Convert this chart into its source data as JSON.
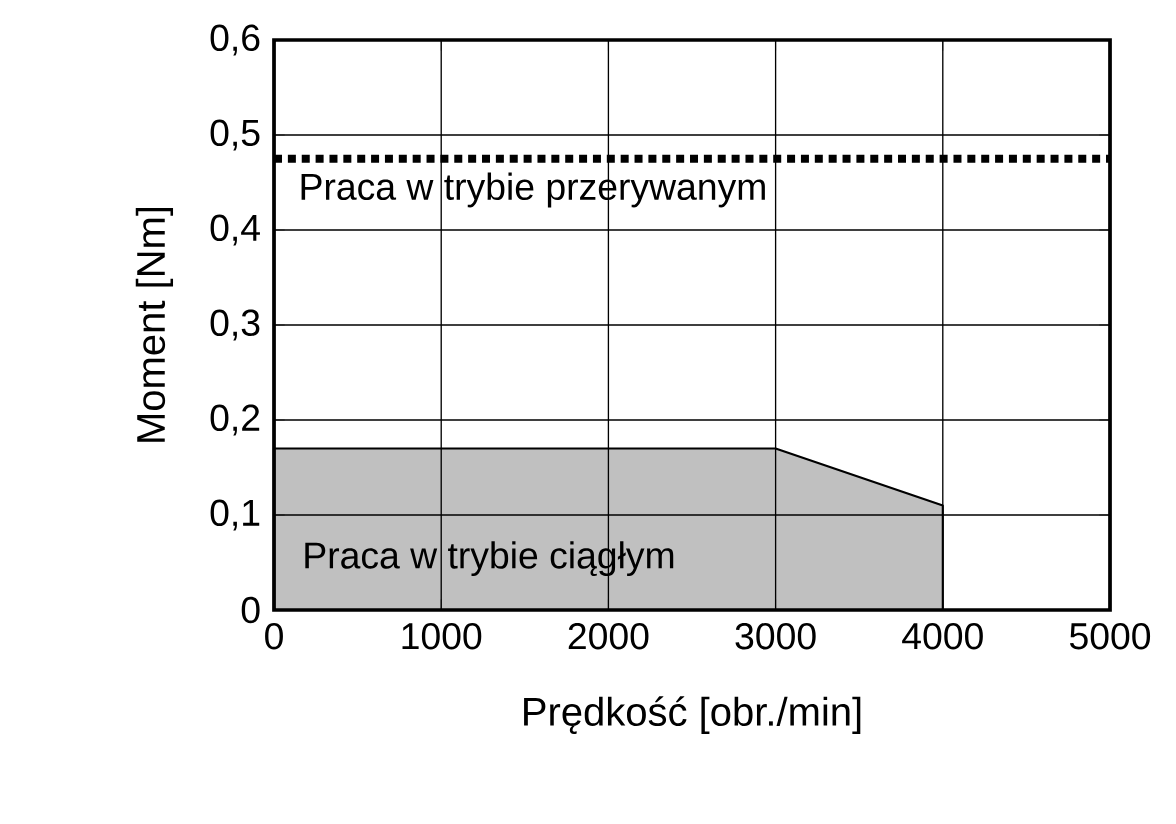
{
  "chart_data": {
    "type": "area",
    "xlabel": "Prędkość [obr./min]",
    "ylabel": "Moment [Nm]",
    "x": [
      0,
      3000,
      4000
    ],
    "series": [
      {
        "name": "Praca w trybie ciągłym",
        "color": "#c0c0c0",
        "values": [
          0.17,
          0.17,
          0.11
        ]
      }
    ],
    "xlim": [
      0,
      5000
    ],
    "xticks": [
      0,
      1000,
      2000,
      3000,
      4000,
      5000
    ],
    "ylim": [
      0,
      0.6
    ],
    "yticks": [
      0,
      {
        "value": 0.1,
        "label": "0,1"
      },
      {
        "value": 0.2,
        "label": "0,2"
      },
      {
        "value": 0.3,
        "label": "0,3"
      },
      {
        "value": 0.4,
        "label": "0,4"
      },
      {
        "value": 0.5,
        "label": "0,5"
      },
      {
        "value": 0.6,
        "label": "0,6"
      }
    ],
    "ref_lines": [
      {
        "axis": "y",
        "value": 0.475,
        "label": "Praca w trybie przerywanym",
        "line_style": "dotted"
      }
    ],
    "grid": true
  }
}
